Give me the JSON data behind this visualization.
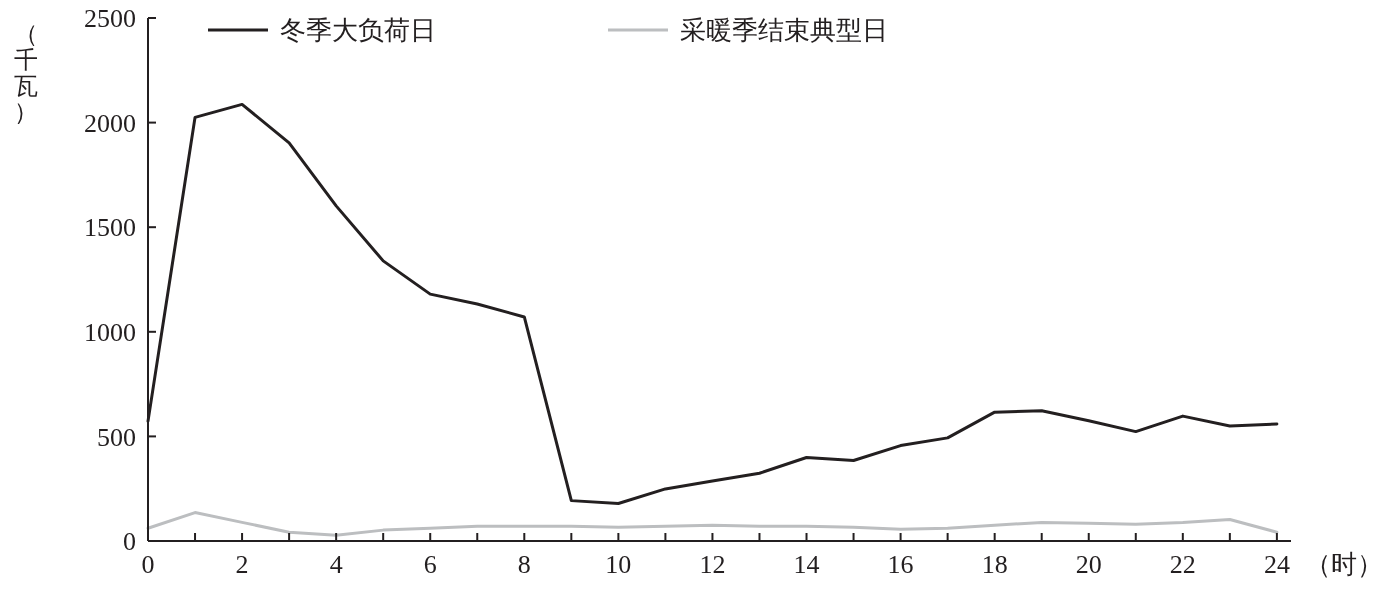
{
  "chart_data": {
    "type": "line",
    "ylabel": "（千瓦）",
    "xlabel": "（时）",
    "x": [
      0,
      1,
      2,
      3,
      4,
      5,
      6,
      7,
      8,
      9,
      10,
      11,
      12,
      13,
      14,
      15,
      16,
      17,
      18,
      19,
      20,
      21,
      22,
      23,
      24
    ],
    "series": [
      {
        "name": "冬季大负荷日",
        "color": "#231f20",
        "values": [
          573,
          2025,
          2087,
          1903,
          1602,
          1339,
          1180,
          1133,
          1071,
          193,
          179,
          249,
          287,
          324,
          399,
          385,
          456,
          493,
          616,
          623,
          575,
          523,
          597,
          550,
          559
        ]
      },
      {
        "name": "采暖季结束典型日",
        "color": "#bcbec0",
        "values": [
          61,
          136,
          89,
          42,
          28,
          52,
          61,
          70,
          70,
          70,
          66,
          70,
          75,
          70,
          70,
          66,
          56,
          61,
          75,
          89,
          85,
          80,
          89,
          103,
          42
        ]
      }
    ],
    "xlim": [
      0,
      24.3
    ],
    "ylim": [
      0,
      2500
    ],
    "xticks": [
      0,
      {
        "value": 1,
        "label": null
      },
      2,
      {
        "value": 3,
        "label": null
      },
      4,
      {
        "value": 5,
        "label": null
      },
      6,
      {
        "value": 7,
        "label": null
      },
      8,
      {
        "value": 9,
        "label": null
      },
      10,
      {
        "value": 11,
        "label": null
      },
      12,
      {
        "value": 13,
        "label": null
      },
      14,
      {
        "value": 15,
        "label": null
      },
      16,
      {
        "value": 17,
        "label": null
      },
      18,
      {
        "value": 19,
        "label": null
      },
      20,
      {
        "value": 21,
        "label": null
      },
      22,
      {
        "value": 23,
        "label": null
      },
      24
    ],
    "yticks": [
      0,
      500,
      1000,
      1500,
      2000,
      2500
    ],
    "legend": "top",
    "grid": false,
    "marker": "none",
    "line_style": "solid"
  }
}
